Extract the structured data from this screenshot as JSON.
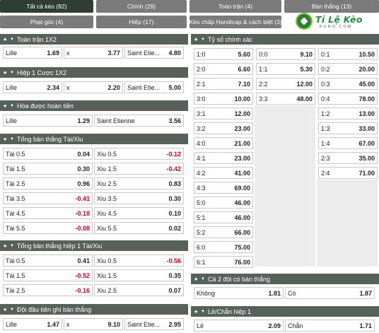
{
  "tabs": [
    {
      "label": "Tất cả kèo (82)",
      "active": true
    },
    {
      "label": "Chính (29)",
      "active": false
    },
    {
      "label": "Toàn trận (4)",
      "active": false
    },
    {
      "label": "Bàn thắng (13)",
      "active": false
    },
    {
      "label": "Phạt góc (4)",
      "active": false
    },
    {
      "label": "Hiệp (17)",
      "active": false
    },
    {
      "label": "Kèo chấp Handicap & cách biệt (3)",
      "active": false
    }
  ],
  "logo": {
    "text": "Tỉ Lệ Kèo",
    "sub": "EURO.COM"
  },
  "sections": {
    "fulltime_1x2": {
      "title": "Toàn trận 1X2",
      "rows": [
        [
          {
            "label": "Lille",
            "value": "1.69"
          },
          {
            "label": "x",
            "value": "3.77"
          },
          {
            "label": "Saint Etie...",
            "value": "4.80"
          }
        ]
      ]
    },
    "half1_1x2": {
      "title": "Hiệp 1 Cược 1X2",
      "rows": [
        [
          {
            "label": "Lille",
            "value": "2.34"
          },
          {
            "label": "x",
            "value": "2.20"
          },
          {
            "label": "Saint Etie...",
            "value": "5.00"
          }
        ]
      ]
    },
    "draw_no_bet": {
      "title": "Hòa được hoàn tiền",
      "rows": [
        [
          {
            "label": "Lille",
            "value": "1.29"
          },
          {
            "label": "Saint Etienne",
            "value": "3.56"
          }
        ]
      ]
    },
    "total_goals": {
      "title": "Tổng bàn thắng Tài/Xiu",
      "rows": [
        [
          {
            "label": "Tài 0.5",
            "value": "0.04"
          },
          {
            "label": "Xiu 0.5",
            "value": "-0.12"
          }
        ],
        [
          {
            "label": "Tài 1.5",
            "value": "0.30"
          },
          {
            "label": "Xiu 1.5",
            "value": "-0.42"
          }
        ],
        [
          {
            "label": "Tài 2.5",
            "value": "0.96"
          },
          {
            "label": "Xiu 2.5",
            "value": "0.83"
          }
        ],
        [
          {
            "label": "Tài 3.5",
            "value": "-0.41"
          },
          {
            "label": "Xiu 3.5",
            "value": "0.30"
          }
        ],
        [
          {
            "label": "Tài 4.5",
            "value": "-0.18"
          },
          {
            "label": "Xiu 4.5",
            "value": "0.10"
          }
        ],
        [
          {
            "label": "Tài 5.5",
            "value": "-0.08"
          },
          {
            "label": "Xiu 5.5",
            "value": "0.02"
          }
        ]
      ]
    },
    "total_goals_h1": {
      "title": "Tổng bàn thắng hiệp 1 Tài/Xiu",
      "rows": [
        [
          {
            "label": "Tài 0.5",
            "value": "0.41"
          },
          {
            "label": "Xiu 0.5",
            "value": "-0.56"
          }
        ],
        [
          {
            "label": "Tài 1.5",
            "value": "-0.52"
          },
          {
            "label": "Xiu 1.5",
            "value": "0.35"
          }
        ],
        [
          {
            "label": "Tài 2.5",
            "value": "-0.16"
          },
          {
            "label": "Xiu 2.5",
            "value": "0.07"
          }
        ]
      ]
    },
    "first_to_score": {
      "title": "Đội đầu tiên ghi bàn thắng",
      "rows": [
        [
          {
            "label": "Lille",
            "value": "1.47"
          },
          {
            "label": "x",
            "value": "9.10"
          },
          {
            "label": "Saint Etie...",
            "value": "2.95"
          }
        ]
      ]
    },
    "correct_score": {
      "title": "Tỷ số chính xác",
      "columns": [
        [
          {
            "label": "1:0",
            "value": "5.60"
          },
          {
            "label": "2:0",
            "value": "6.60"
          },
          {
            "label": "2:1",
            "value": "7.10"
          },
          {
            "label": "3:0",
            "value": "10.00"
          },
          {
            "label": "3:1",
            "value": "12.00"
          },
          {
            "label": "3:2",
            "value": "23.00"
          },
          {
            "label": "4:0",
            "value": "21.00"
          },
          {
            "label": "4:1",
            "value": "23.00"
          },
          {
            "label": "4:2",
            "value": "41.00"
          },
          {
            "label": "4:3",
            "value": "69.00"
          },
          {
            "label": "5:0",
            "value": "46.00"
          },
          {
            "label": "5:1",
            "value": "46.00"
          },
          {
            "label": "5:2",
            "value": "66.00"
          },
          {
            "label": "6:0",
            "value": "75.00"
          },
          {
            "label": "6:1",
            "value": "76.00"
          }
        ],
        [
          {
            "label": "0:0",
            "value": "9.10"
          },
          {
            "label": "1:1",
            "value": "5.30"
          },
          {
            "label": "2:2",
            "value": "12.00"
          },
          {
            "label": "3:3",
            "value": "48.00"
          }
        ],
        [
          {
            "label": "0:1",
            "value": "10.50"
          },
          {
            "label": "0:2",
            "value": "20.00"
          },
          {
            "label": "0:3",
            "value": "45.00"
          },
          {
            "label": "0:4",
            "value": "78.00"
          },
          {
            "label": "1:2",
            "value": "13.00"
          },
          {
            "label": "1:3",
            "value": "33.00"
          },
          {
            "label": "1:4",
            "value": "67.00"
          },
          {
            "label": "2:3",
            "value": "35.00"
          },
          {
            "label": "2:4",
            "value": "71.00"
          }
        ]
      ]
    },
    "both_teams_score": {
      "title": "Cả 2 đội có bàn thắng",
      "rows": [
        [
          {
            "label": "Không",
            "value": "1.81"
          },
          {
            "label": "Có",
            "value": "1.87"
          }
        ]
      ]
    },
    "odd_even_h1": {
      "title": "Lẻ/Chẵn hiệp 1",
      "rows": [
        [
          {
            "label": "Lẻ",
            "value": "2.09"
          },
          {
            "label": "Chẵn",
            "value": "1.71"
          }
        ]
      ]
    }
  },
  "icons": {
    "star": "star-icon",
    "caret": "caret-down-icon"
  },
  "colors": {
    "header": "#58605a",
    "tab_active": "#2f3e34",
    "tab": "#7a7a7a",
    "negative": "#d0021b",
    "logo": "#1f8f3a"
  }
}
